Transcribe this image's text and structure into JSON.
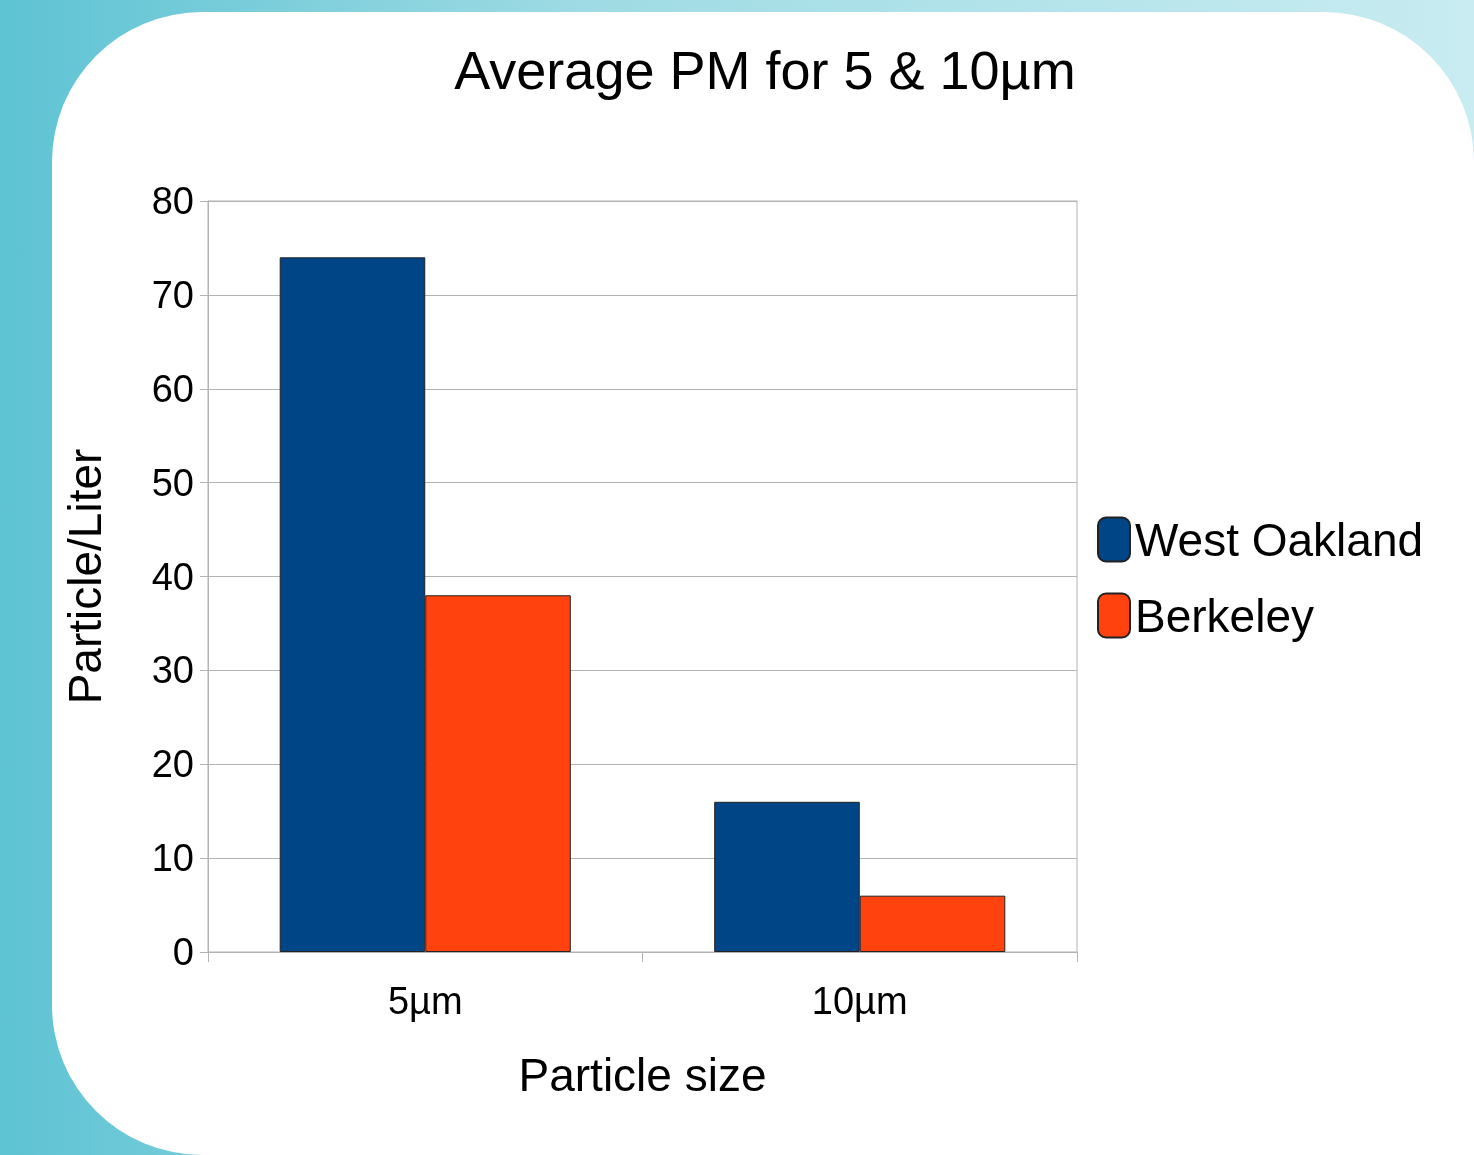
{
  "chart_data": {
    "type": "bar",
    "title": "Average PM for 5 & 10µm",
    "xlabel": "Particle size",
    "ylabel": "Particle/Liter",
    "categories": [
      "5µm",
      "10µm"
    ],
    "series": [
      {
        "name": "West Oakland",
        "color": "#004586",
        "values": [
          74,
          16
        ]
      },
      {
        "name": "Berkeley",
        "color": "#ff420e",
        "values": [
          38,
          6
        ]
      }
    ],
    "ylim": [
      0,
      80
    ],
    "yticks": [
      0,
      10,
      20,
      30,
      40,
      50,
      60,
      70,
      80
    ],
    "grid": "y",
    "legend": "right"
  }
}
